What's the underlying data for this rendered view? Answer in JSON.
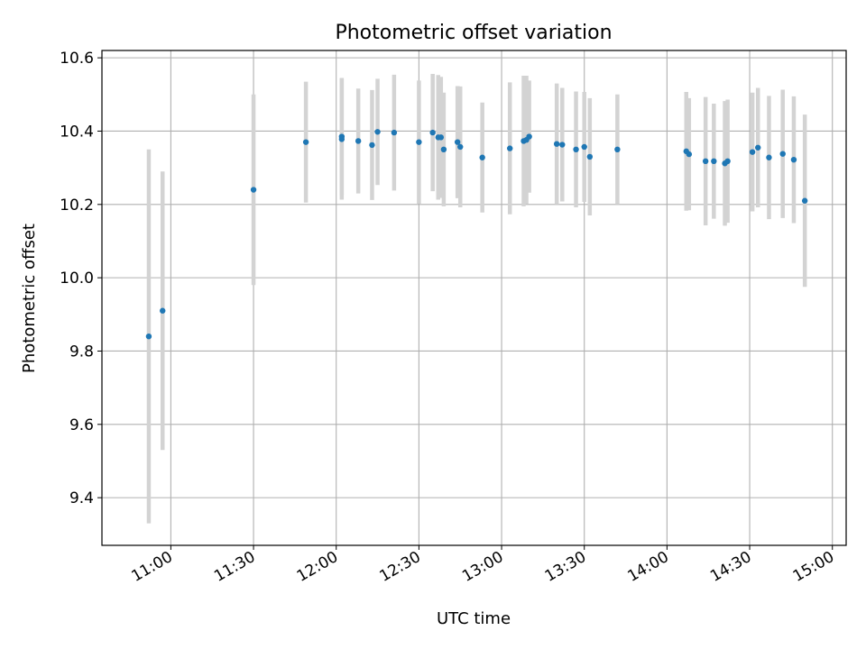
{
  "chart_data": {
    "type": "scatter",
    "title": "Photometric offset variation",
    "xlabel": "UTC time",
    "ylabel": "Photometric offset",
    "xlim": [
      "10:35",
      "15:05"
    ],
    "ylim": [
      9.27,
      10.62
    ],
    "x_ticks": [
      "11:00",
      "11:30",
      "12:00",
      "12:30",
      "13:00",
      "13:30",
      "14:00",
      "14:30",
      "15:00"
    ],
    "y_ticks": [
      9.4,
      9.6,
      9.8,
      10.0,
      10.2,
      10.4,
      10.6
    ],
    "grid": true,
    "point_color": "#1f77b4",
    "errorbar_color": "#d3d3d3",
    "points": [
      {
        "x": "10:52",
        "y": 9.84,
        "err": 0.51
      },
      {
        "x": "10:57",
        "y": 9.91,
        "err": 0.38
      },
      {
        "x": "11:30",
        "y": 10.24,
        "err": 0.26
      },
      {
        "x": "11:49",
        "y": 10.37,
        "err": 0.165
      },
      {
        "x": "12:02",
        "y": 10.385,
        "err": 0.16
      },
      {
        "x": "12:02",
        "y": 10.378,
        "err": 0.165
      },
      {
        "x": "12:08",
        "y": 10.373,
        "err": 0.143
      },
      {
        "x": "12:13",
        "y": 10.362,
        "err": 0.15
      },
      {
        "x": "12:15",
        "y": 10.398,
        "err": 0.145
      },
      {
        "x": "12:21",
        "y": 10.396,
        "err": 0.158
      },
      {
        "x": "12:30",
        "y": 10.37,
        "err": 0.168
      },
      {
        "x": "12:35",
        "y": 10.396,
        "err": 0.16
      },
      {
        "x": "12:37",
        "y": 10.383,
        "err": 0.17
      },
      {
        "x": "12:38",
        "y": 10.383,
        "err": 0.165
      },
      {
        "x": "12:39",
        "y": 10.35,
        "err": 0.155
      },
      {
        "x": "12:44",
        "y": 10.37,
        "err": 0.153
      },
      {
        "x": "12:45",
        "y": 10.357,
        "err": 0.165
      },
      {
        "x": "12:53",
        "y": 10.328,
        "err": 0.15
      },
      {
        "x": "13:03",
        "y": 10.353,
        "err": 0.18
      },
      {
        "x": "13:08",
        "y": 10.373,
        "err": 0.178
      },
      {
        "x": "13:09",
        "y": 10.376,
        "err": 0.175
      },
      {
        "x": "13:10",
        "y": 10.385,
        "err": 0.153
      },
      {
        "x": "13:20",
        "y": 10.365,
        "err": 0.165
      },
      {
        "x": "13:22",
        "y": 10.363,
        "err": 0.155
      },
      {
        "x": "13:27",
        "y": 10.35,
        "err": 0.158
      },
      {
        "x": "13:30",
        "y": 10.357,
        "err": 0.15
      },
      {
        "x": "13:32",
        "y": 10.33,
        "err": 0.16
      },
      {
        "x": "13:42",
        "y": 10.35,
        "err": 0.15
      },
      {
        "x": "14:07",
        "y": 10.345,
        "err": 0.162
      },
      {
        "x": "14:08",
        "y": 10.337,
        "err": 0.153
      },
      {
        "x": "14:14",
        "y": 10.318,
        "err": 0.175
      },
      {
        "x": "14:17",
        "y": 10.318,
        "err": 0.157
      },
      {
        "x": "14:21",
        "y": 10.312,
        "err": 0.17
      },
      {
        "x": "14:22",
        "y": 10.318,
        "err": 0.168
      },
      {
        "x": "14:31",
        "y": 10.343,
        "err": 0.162
      },
      {
        "x": "14:33",
        "y": 10.355,
        "err": 0.163
      },
      {
        "x": "14:37",
        "y": 10.328,
        "err": 0.168
      },
      {
        "x": "14:42",
        "y": 10.338,
        "err": 0.175
      },
      {
        "x": "14:46",
        "y": 10.322,
        "err": 0.173
      },
      {
        "x": "14:50",
        "y": 10.21,
        "err": 0.235
      }
    ]
  }
}
